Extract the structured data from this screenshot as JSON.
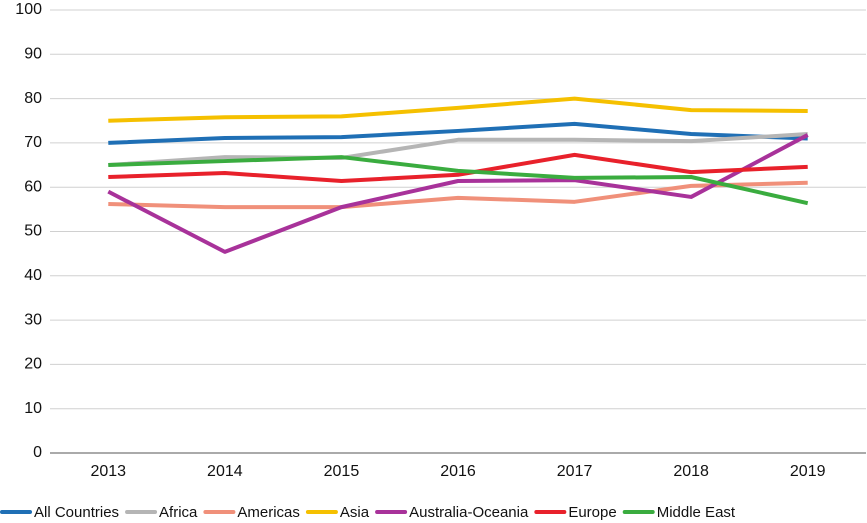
{
  "chart_data": {
    "type": "line",
    "categories": [
      "2013",
      "2014",
      "2015",
      "2016",
      "2017",
      "2018",
      "2019"
    ],
    "ylim": [
      0,
      100
    ],
    "yticks": [
      0,
      10,
      20,
      30,
      40,
      50,
      60,
      70,
      80,
      90,
      100
    ],
    "grid": true,
    "series": [
      {
        "name": "All Countries",
        "color": "#1f6fb5",
        "values": [
          70,
          71.1,
          71.3,
          72.7,
          74.3,
          72,
          71
        ]
      },
      {
        "name": "Africa",
        "color": "#b5b5b5",
        "values": [
          65,
          66.8,
          66.6,
          70.7,
          70.7,
          70.4,
          72
        ]
      },
      {
        "name": "Americas",
        "color": "#f0907a",
        "values": [
          56.2,
          55.5,
          55.5,
          57.6,
          56.7,
          60.3,
          61
        ]
      },
      {
        "name": "Asia",
        "color": "#f5c000",
        "values": [
          75,
          75.8,
          76,
          77.9,
          80,
          77.4,
          77.2
        ]
      },
      {
        "name": "Australia-Oceania",
        "color": "#a8329a",
        "values": [
          59,
          45.4,
          55.5,
          61.4,
          61.6,
          57.8,
          71.8
        ]
      },
      {
        "name": "Europe",
        "color": "#e8212b",
        "values": [
          62.3,
          63.2,
          61.4,
          62.8,
          67.3,
          63.4,
          64.6
        ]
      },
      {
        "name": "Middle East",
        "color": "#3aac3f",
        "values": [
          65,
          65.9,
          66.8,
          63.7,
          62.1,
          62.3,
          56.4
        ]
      }
    ]
  }
}
